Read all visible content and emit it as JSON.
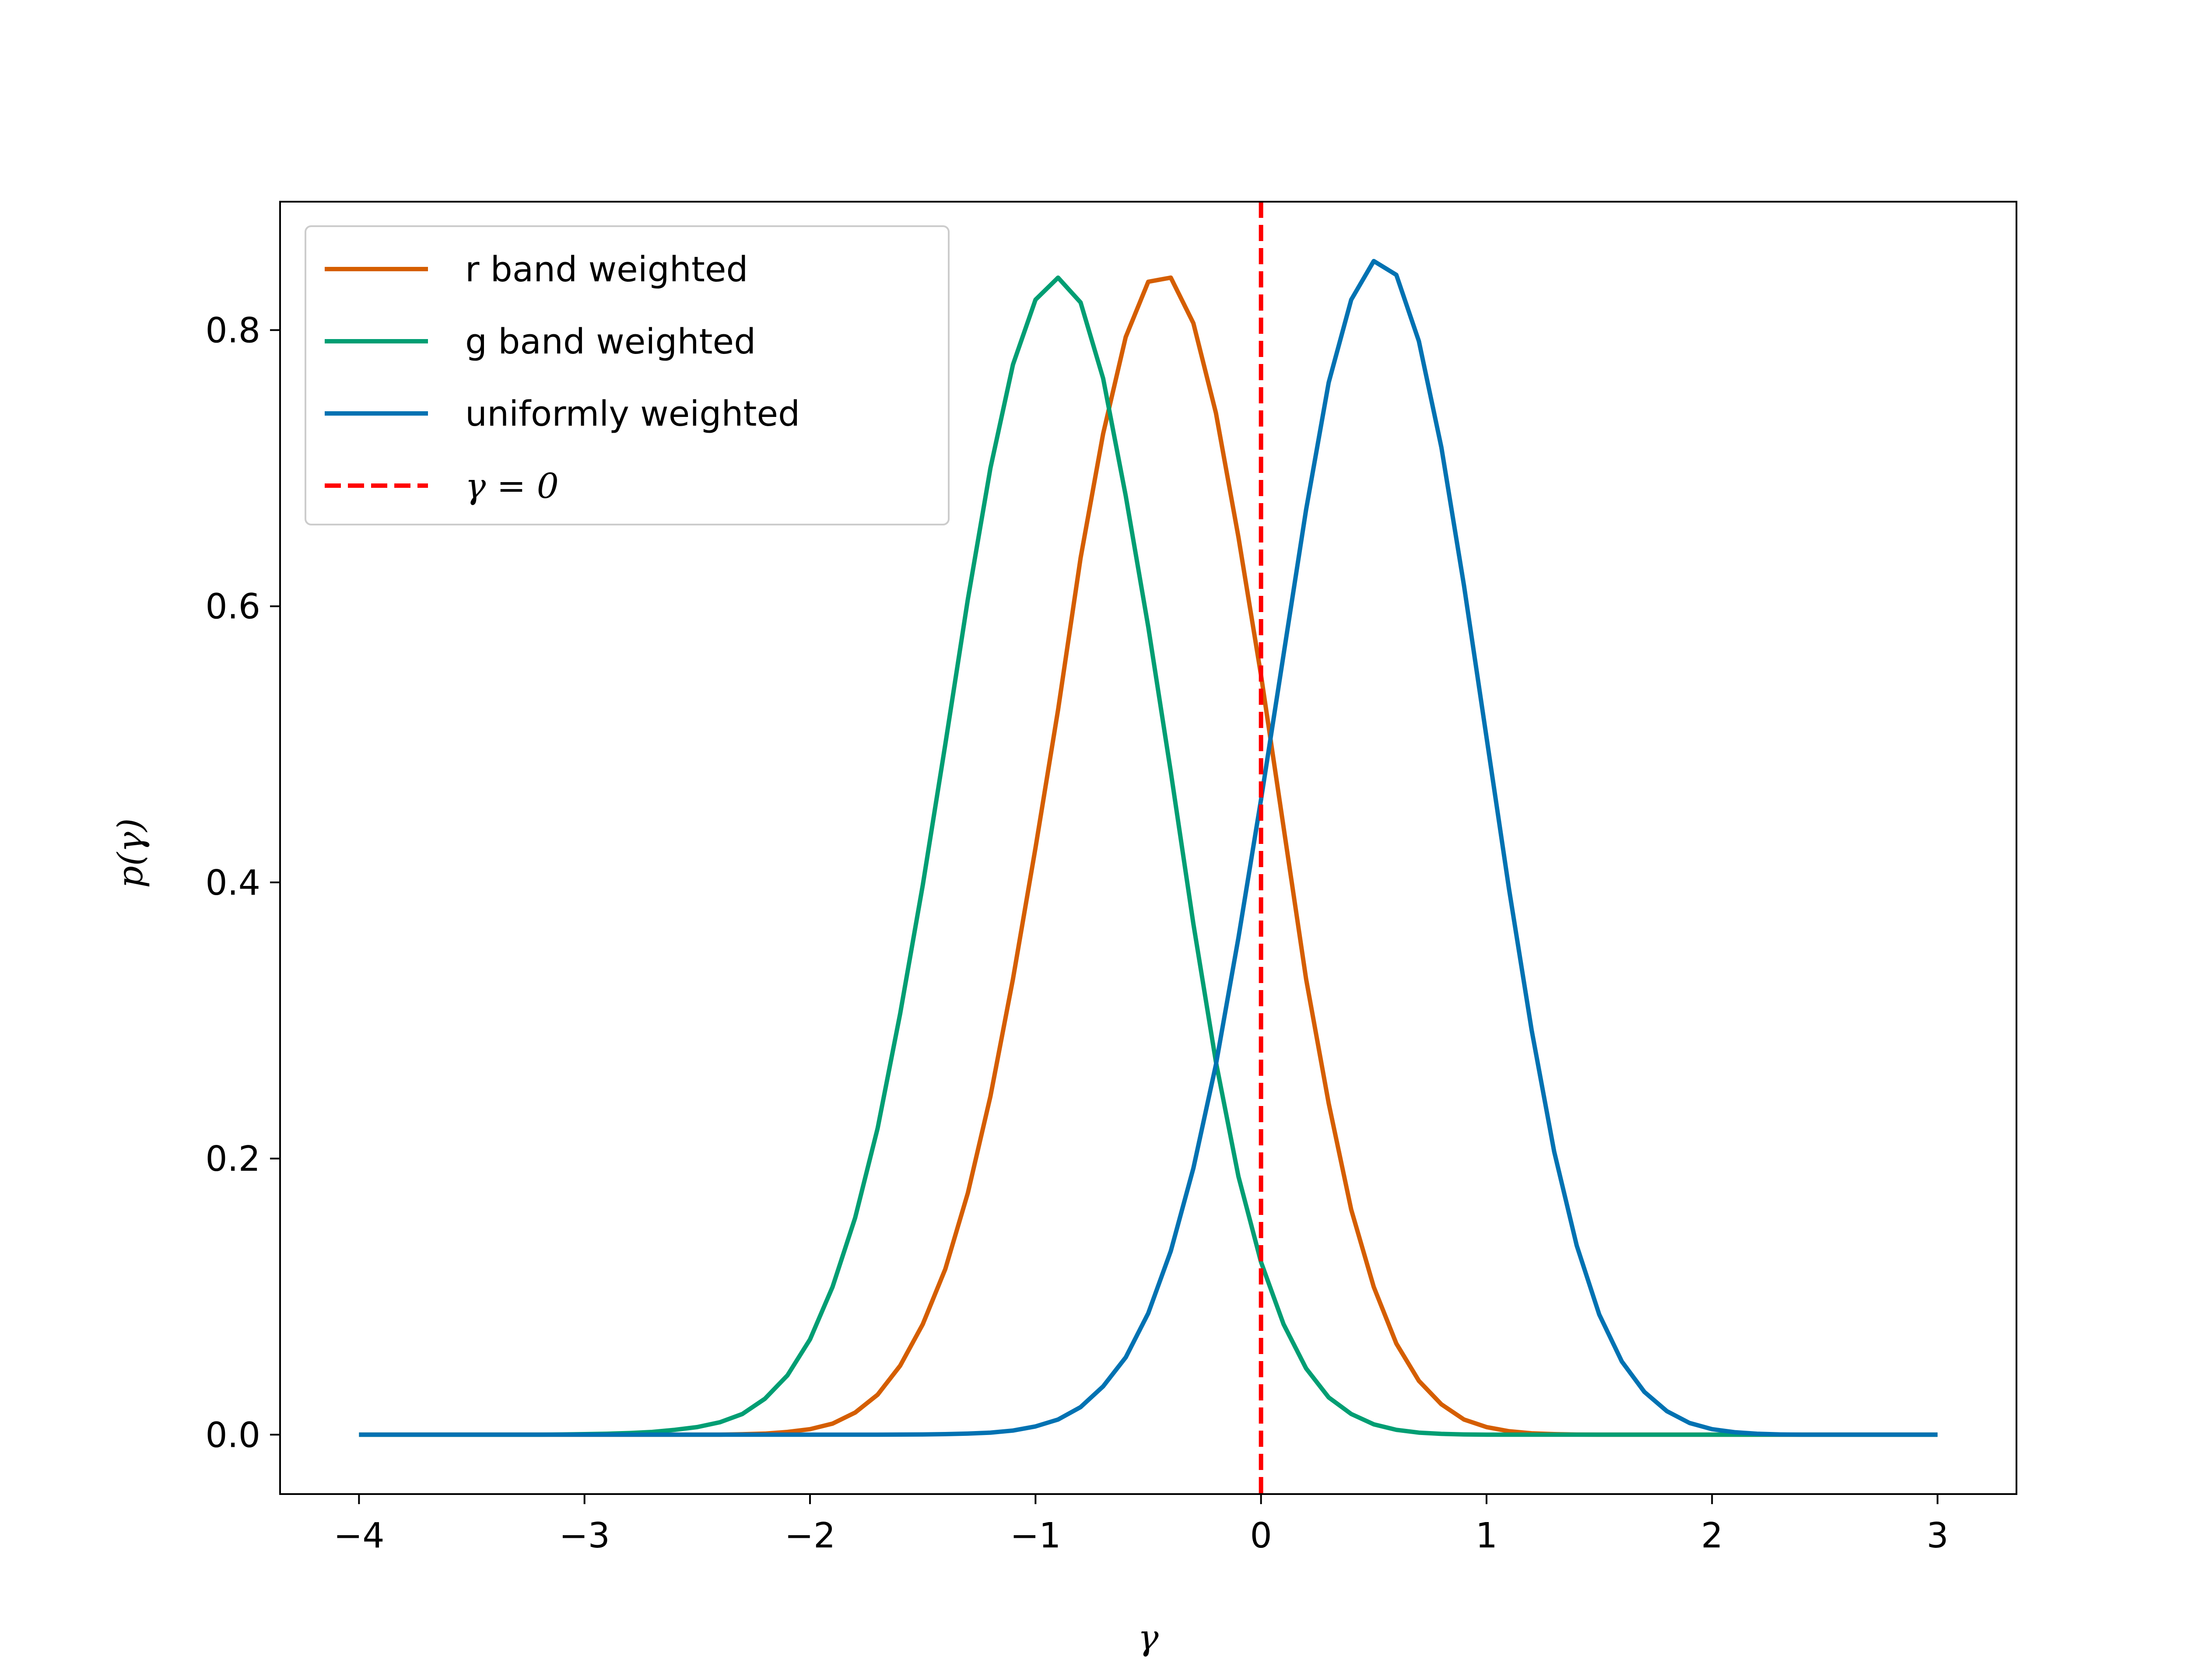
{
  "chart_data": {
    "type": "line",
    "title": "",
    "xlabel": "γ",
    "ylabel": "p(γ)",
    "xlim": [
      -4.35,
      3.35
    ],
    "ylim": [
      -0.043,
      0.893
    ],
    "xticks": [
      -4,
      -3,
      -2,
      -1,
      0,
      1,
      2,
      3
    ],
    "xtick_labels": [
      "−4",
      "−3",
      "−2",
      "−1",
      "0",
      "1",
      "2",
      "3"
    ],
    "yticks": [
      0.0,
      0.2,
      0.4,
      0.6,
      0.8
    ],
    "ytick_labels": [
      "0.0",
      "0.2",
      "0.4",
      "0.6",
      "0.8"
    ],
    "grid": false,
    "legend_position": "upper-left",
    "x": [
      -4.0,
      -3.9,
      -3.8,
      -3.7,
      -3.6,
      -3.5,
      -3.4,
      -3.3,
      -3.2,
      -3.1,
      -3.0,
      -2.9,
      -2.8,
      -2.7,
      -2.6,
      -2.5,
      -2.4,
      -2.3,
      -2.2,
      -2.1,
      -2.0,
      -1.9,
      -1.8,
      -1.7,
      -1.6,
      -1.5,
      -1.4,
      -1.3,
      -1.2,
      -1.1,
      -1.0,
      -0.9,
      -0.8,
      -0.7,
      -0.6,
      -0.5,
      -0.4,
      -0.3,
      -0.2,
      -0.1,
      0.0,
      0.1,
      0.2,
      0.3,
      0.4,
      0.5,
      0.6,
      0.7,
      0.8,
      0.9,
      1.0,
      1.1,
      1.2,
      1.3,
      1.4,
      1.5,
      1.6,
      1.7,
      1.8,
      1.9,
      2.0,
      2.1,
      2.2,
      2.3,
      2.4,
      2.5,
      2.6,
      2.7,
      2.8,
      2.9,
      3.0
    ],
    "series": [
      {
        "name": "r band weighted",
        "color": "#d55e00",
        "style": "solid",
        "values": [
          0,
          0,
          0,
          0,
          0,
          0,
          0,
          0,
          0,
          0,
          0,
          0,
          0,
          0,
          0,
          0,
          0,
          0.0003,
          0.0008,
          0.002,
          0.004,
          0.008,
          0.016,
          0.029,
          0.05,
          0.08,
          0.12,
          0.175,
          0.245,
          0.33,
          0.425,
          0.525,
          0.635,
          0.725,
          0.795,
          0.835,
          0.838,
          0.805,
          0.74,
          0.65,
          0.55,
          0.44,
          0.33,
          0.24,
          0.163,
          0.107,
          0.066,
          0.039,
          0.022,
          0.011,
          0.0055,
          0.0025,
          0.001,
          0.0004,
          0.0001,
          0,
          0,
          0,
          0,
          0,
          0,
          0,
          0,
          0,
          0,
          0,
          0,
          0,
          0,
          0,
          0
        ]
      },
      {
        "name": "g band weighted",
        "color": "#009e73",
        "style": "solid",
        "values": [
          0,
          0,
          0,
          0,
          0,
          0,
          0,
          0,
          0,
          0.0002,
          0.0004,
          0.0007,
          0.0012,
          0.002,
          0.0035,
          0.0055,
          0.009,
          0.015,
          0.026,
          0.043,
          0.069,
          0.107,
          0.157,
          0.222,
          0.305,
          0.398,
          0.5,
          0.605,
          0.7,
          0.775,
          0.822,
          0.838,
          0.82,
          0.765,
          0.68,
          0.585,
          0.48,
          0.37,
          0.27,
          0.187,
          0.125,
          0.08,
          0.048,
          0.027,
          0.015,
          0.0075,
          0.0035,
          0.0015,
          0.0006,
          0.0002,
          0,
          0,
          0,
          0,
          0,
          0,
          0,
          0,
          0,
          0,
          0,
          0,
          0,
          0,
          0,
          0,
          0,
          0,
          0,
          0,
          0
        ]
      },
      {
        "name": "uniformly weighted",
        "color": "#0072b2",
        "style": "solid",
        "values": [
          0,
          0,
          0,
          0,
          0,
          0,
          0,
          0,
          0,
          0,
          0,
          0,
          0,
          0,
          0,
          0,
          0,
          0,
          0,
          0,
          0,
          0,
          0,
          0,
          0.0001,
          0.0002,
          0.0004,
          0.0008,
          0.0015,
          0.003,
          0.006,
          0.011,
          0.02,
          0.035,
          0.056,
          0.088,
          0.133,
          0.193,
          0.268,
          0.36,
          0.46,
          0.565,
          0.67,
          0.762,
          0.822,
          0.85,
          0.84,
          0.792,
          0.715,
          0.615,
          0.505,
          0.395,
          0.293,
          0.205,
          0.137,
          0.087,
          0.053,
          0.031,
          0.017,
          0.0085,
          0.004,
          0.0018,
          0.0007,
          0.0002,
          0,
          0,
          0,
          0,
          0,
          0,
          0
        ]
      }
    ],
    "reference_line": {
      "name": "γ = 0",
      "x": 0,
      "color": "#ff0000",
      "style": "dashed"
    }
  }
}
